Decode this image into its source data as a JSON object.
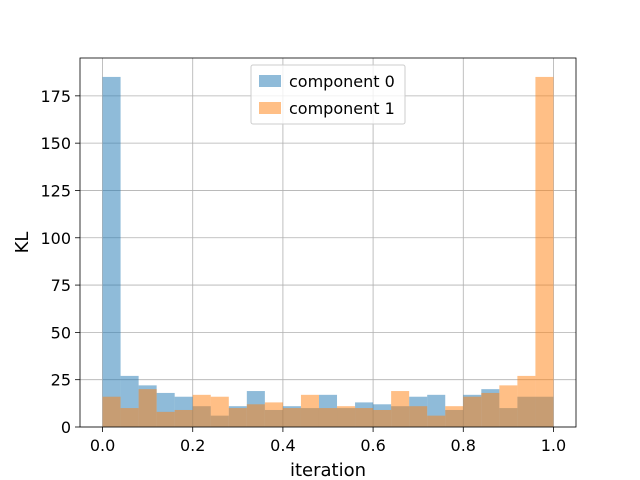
{
  "chart_data": {
    "type": "bar",
    "subtype": "histogram",
    "title": "",
    "xlabel": "iteration",
    "ylabel": "KL",
    "xlim": [
      -0.05,
      1.05
    ],
    "ylim": [
      0,
      195
    ],
    "grid": true,
    "legend_position": "top-center",
    "bins": {
      "start": 0.0,
      "end": 1.0,
      "count": 25
    },
    "x_ticks": [
      0.0,
      0.2,
      0.4,
      0.6,
      0.8,
      1.0
    ],
    "x_tick_labels": [
      "0.0",
      "0.2",
      "0.4",
      "0.6",
      "0.8",
      "1.0"
    ],
    "y_ticks": [
      0,
      25,
      50,
      75,
      100,
      125,
      150,
      175
    ],
    "y_tick_labels": [
      "0",
      "25",
      "50",
      "75",
      "100",
      "125",
      "150",
      "175"
    ],
    "series": [
      {
        "name": "component 0",
        "color": "#1f77b4",
        "alpha": 0.5,
        "values": [
          185,
          27,
          22,
          18,
          16,
          11,
          6,
          11,
          19,
          9,
          11,
          10,
          17,
          10,
          13,
          12,
          11,
          16,
          17,
          9,
          17,
          20,
          10,
          16,
          16
        ]
      },
      {
        "name": "component 1",
        "color": "#ff7f0e",
        "alpha": 0.5,
        "values": [
          16,
          10,
          20,
          8,
          9,
          17,
          16,
          10,
          12,
          13,
          10,
          17,
          10,
          11,
          10,
          9,
          19,
          11,
          6,
          11,
          16,
          18,
          22,
          27,
          185
        ]
      }
    ]
  }
}
